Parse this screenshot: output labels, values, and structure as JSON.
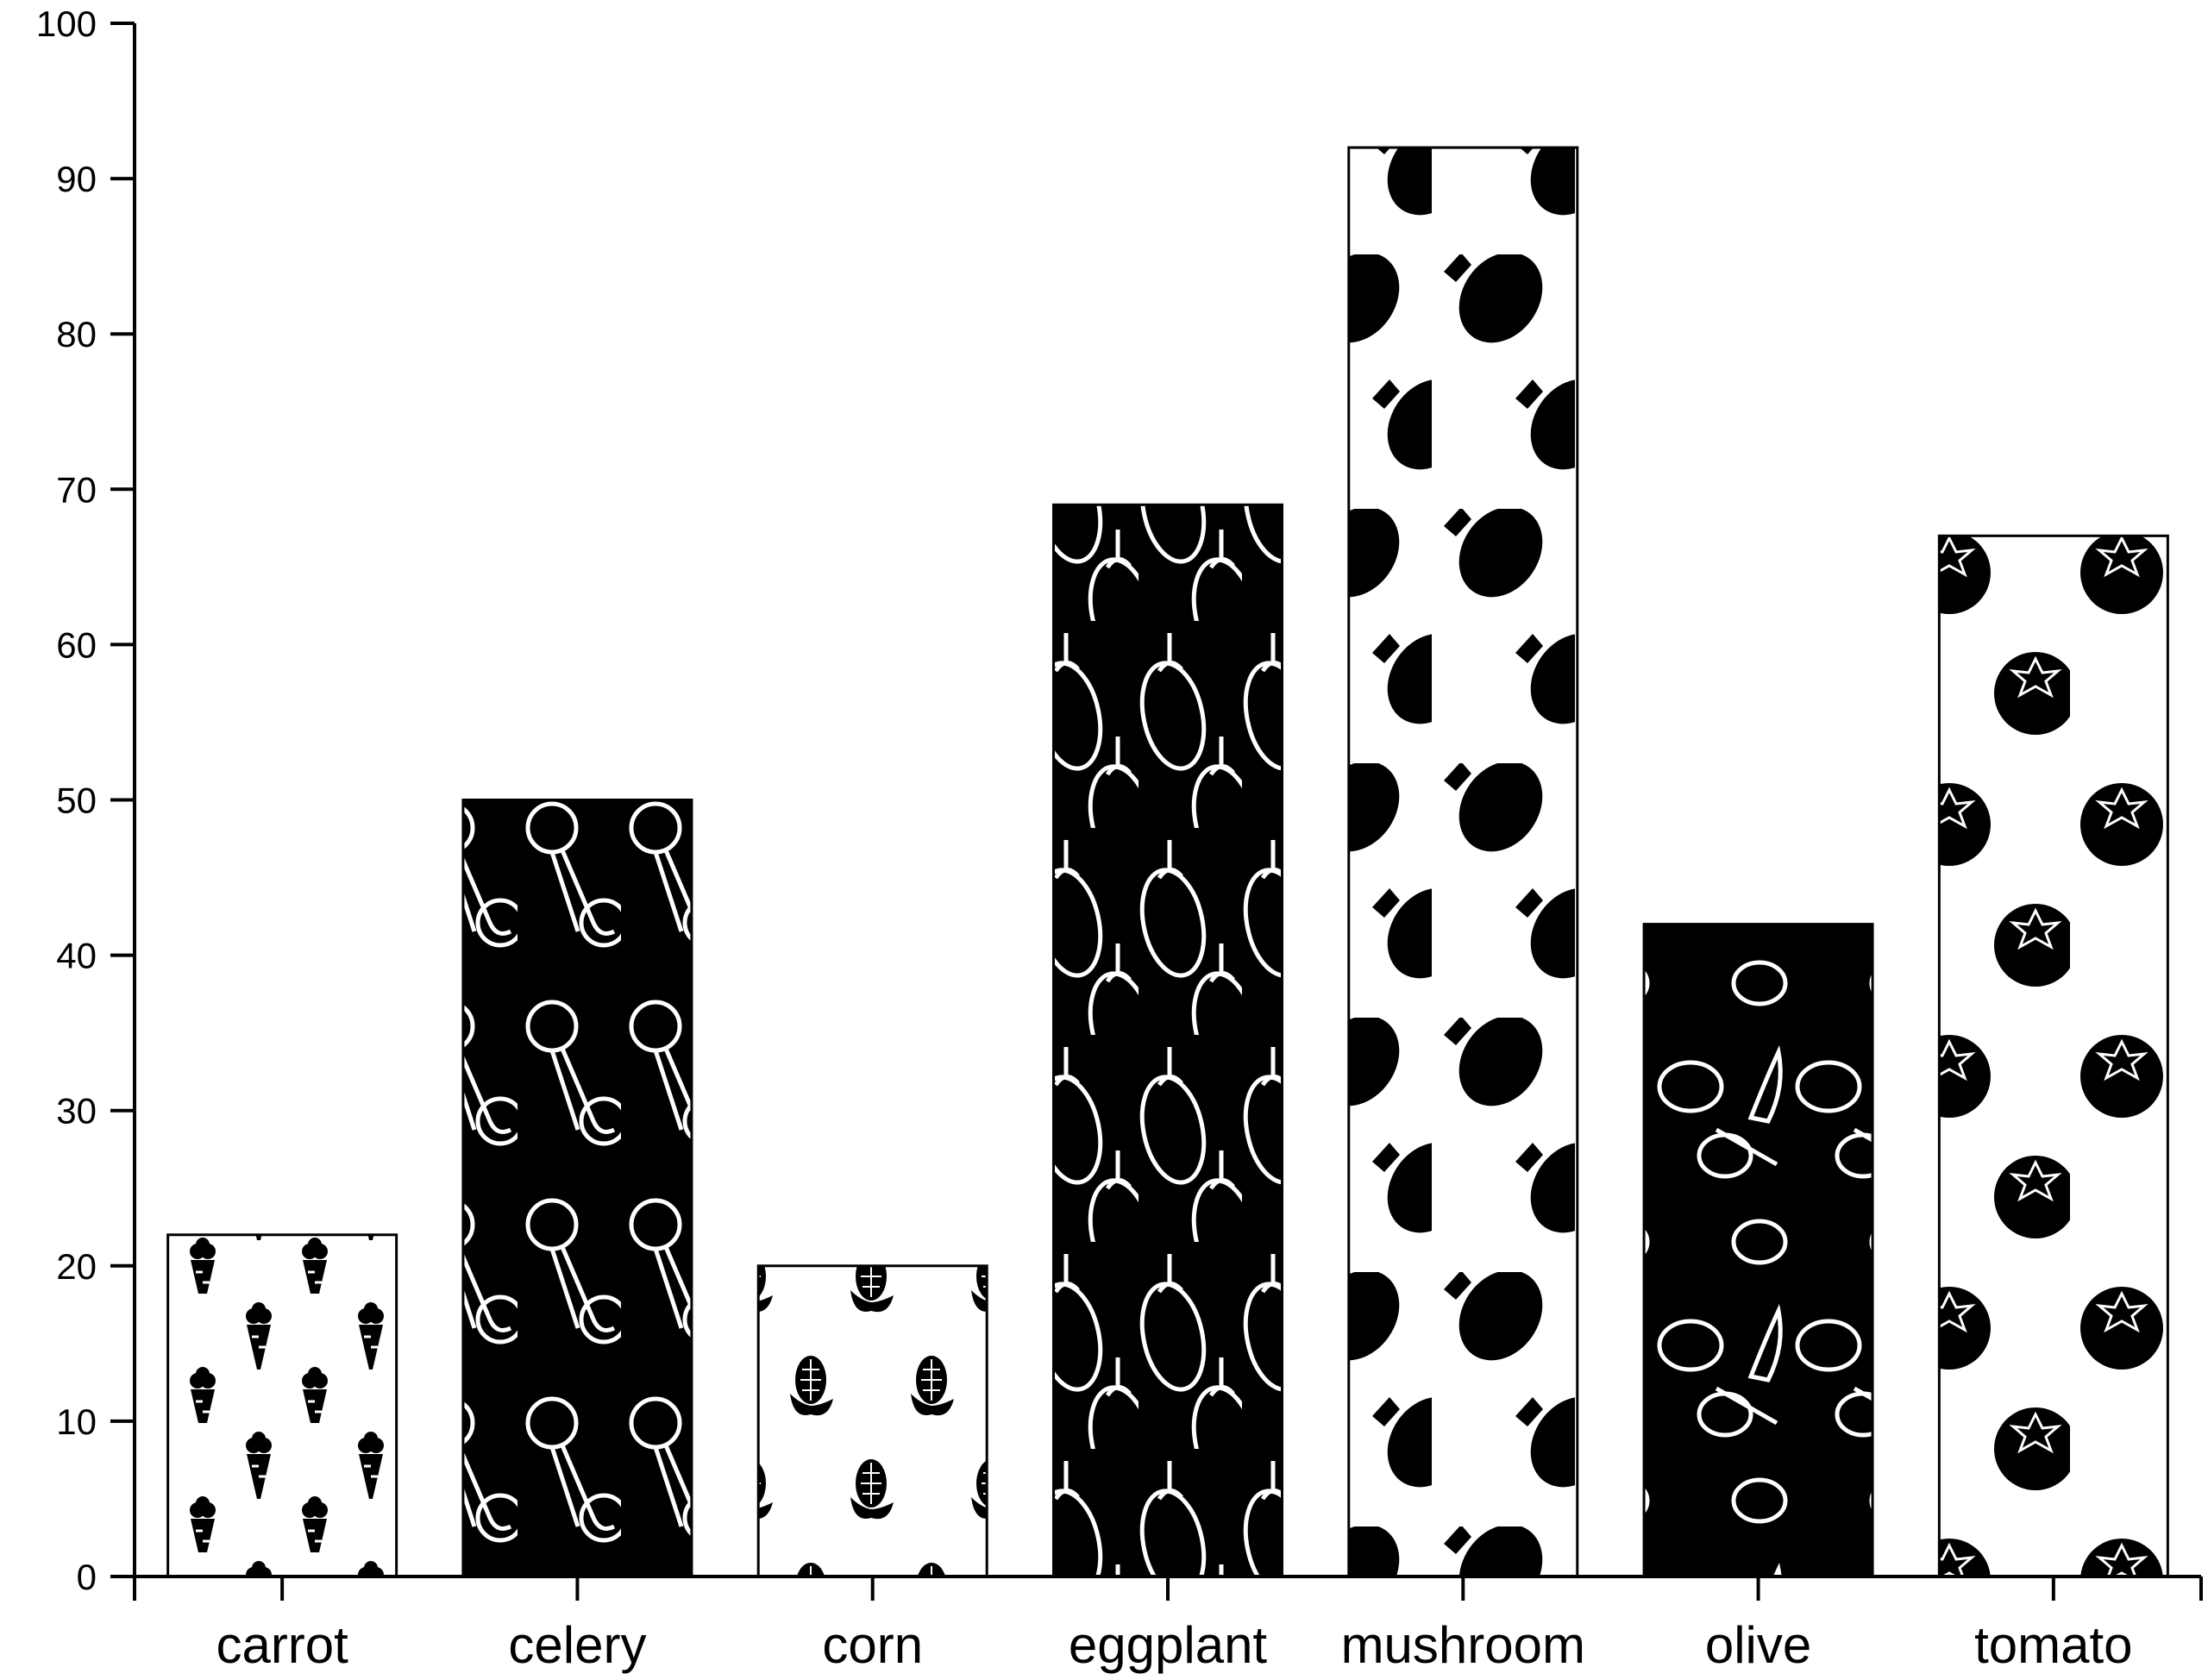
{
  "chart_data": {
    "type": "bar",
    "categories": [
      "carrot",
      "celery",
      "corn",
      "eggplant",
      "mushroom",
      "olive",
      "tomato"
    ],
    "values": [
      22,
      50,
      20,
      69,
      92,
      42,
      67
    ],
    "fills": [
      "white",
      "black",
      "white",
      "black",
      "white",
      "black",
      "white"
    ],
    "pattern_icons": [
      "carrot-icon",
      "celery-icon",
      "corn-icon",
      "eggplant-icon",
      "mushroom-icon",
      "olive-icon",
      "tomato-icon"
    ],
    "title": "",
    "xlabel": "",
    "ylabel": "",
    "ylim": [
      0,
      100
    ],
    "yticks": [
      0,
      10,
      20,
      30,
      40,
      50,
      60,
      70,
      80,
      90,
      100
    ],
    "grid": false,
    "legend": "none"
  }
}
